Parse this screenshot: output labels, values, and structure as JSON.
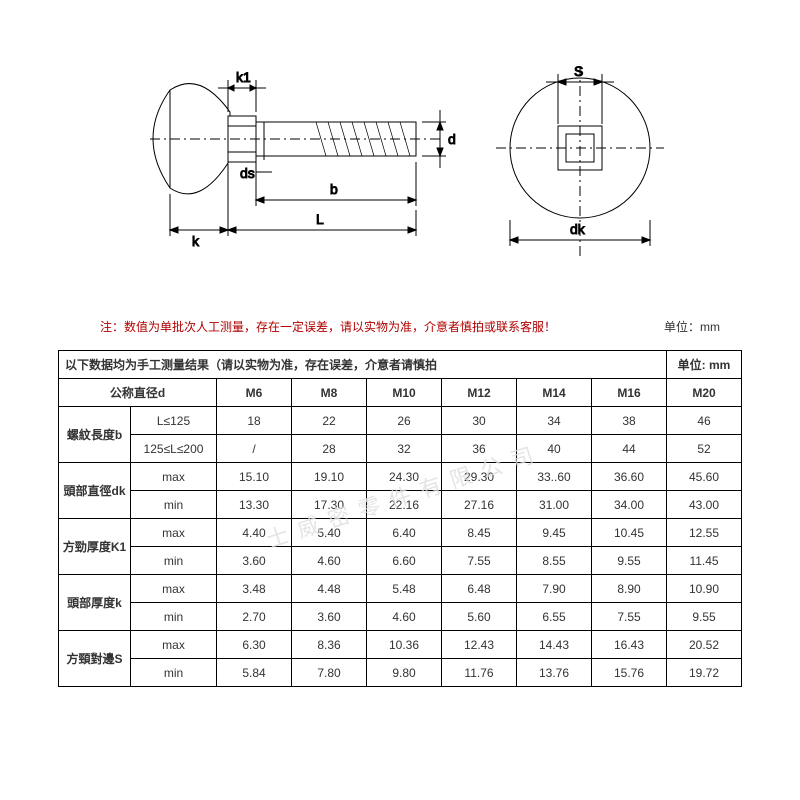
{
  "diagram": {
    "labels": {
      "k1": "k1",
      "ds": "ds",
      "b": "b",
      "L": "L",
      "k": "k",
      "d": "d",
      "S": "S",
      "dk": "dk"
    },
    "stroke": "#000000",
    "stroke_width": 1
  },
  "note": {
    "prefix": "注：",
    "text": "数值为单批次人工测量，存在一定误差，请以实物为准，介意者慎拍或联系客服！",
    "unit_label": "单位：",
    "unit_value": "mm"
  },
  "table": {
    "header_line": "以下数据均为手工测量结果（请以实物为准，存在误差，介意者请慎拍",
    "header_unit": "单位: mm",
    "col_label": "公称直径d",
    "sizes": [
      "M6",
      "M8",
      "M10",
      "M12",
      "M14",
      "M16",
      "M20"
    ],
    "groups": [
      {
        "name": "螺紋長度b",
        "rows": [
          {
            "label": "L≤125",
            "values": [
              "18",
              "22",
              "26",
              "30",
              "34",
              "38",
              "46"
            ]
          },
          {
            "label": "125≤L≤200",
            "values": [
              "/",
              "28",
              "32",
              "36",
              "40",
              "44",
              "52"
            ]
          }
        ]
      },
      {
        "name": "頭部直徑dk",
        "rows": [
          {
            "label": "max",
            "values": [
              "15.10",
              "19.10",
              "24.30",
              "29.30",
              "33..60",
              "36.60",
              "45.60"
            ]
          },
          {
            "label": "min",
            "values": [
              "13.30",
              "17.30",
              "22.16",
              "27.16",
              "31.00",
              "34.00",
              "43.00"
            ]
          }
        ]
      },
      {
        "name": "方勁厚度K1",
        "rows": [
          {
            "label": "max",
            "values": [
              "4.40",
              "5.40",
              "6.40",
              "8.45",
              "9.45",
              "10.45",
              "12.55"
            ]
          },
          {
            "label": "min",
            "values": [
              "3.60",
              "4.60",
              "6.60",
              "7.55",
              "8.55",
              "9.55",
              "11.45"
            ]
          }
        ]
      },
      {
        "name": "頭部厚度k",
        "rows": [
          {
            "label": "max",
            "values": [
              "3.48",
              "4.48",
              "5.48",
              "6.48",
              "7.90",
              "8.90",
              "10.90"
            ]
          },
          {
            "label": "min",
            "values": [
              "2.70",
              "3.60",
              "4.60",
              "5.60",
              "6.55",
              "7.55",
              "9.55"
            ]
          }
        ]
      },
      {
        "name": "方頸對邊S",
        "rows": [
          {
            "label": "max",
            "values": [
              "6.30",
              "8.36",
              "10.36",
              "12.43",
              "14.43",
              "16.43",
              "20.52"
            ]
          },
          {
            "label": "min",
            "values": [
              "5.84",
              "7.80",
              "9.80",
              "11.76",
              "13.76",
              "15.76",
              "19.72"
            ]
          }
        ]
      }
    ]
  },
  "watermark": "士 威 密 零 件 有 限 公 司",
  "colors": {
    "border": "#000000",
    "note_text": "#b00000",
    "text": "#333333",
    "bg": "#ffffff"
  }
}
